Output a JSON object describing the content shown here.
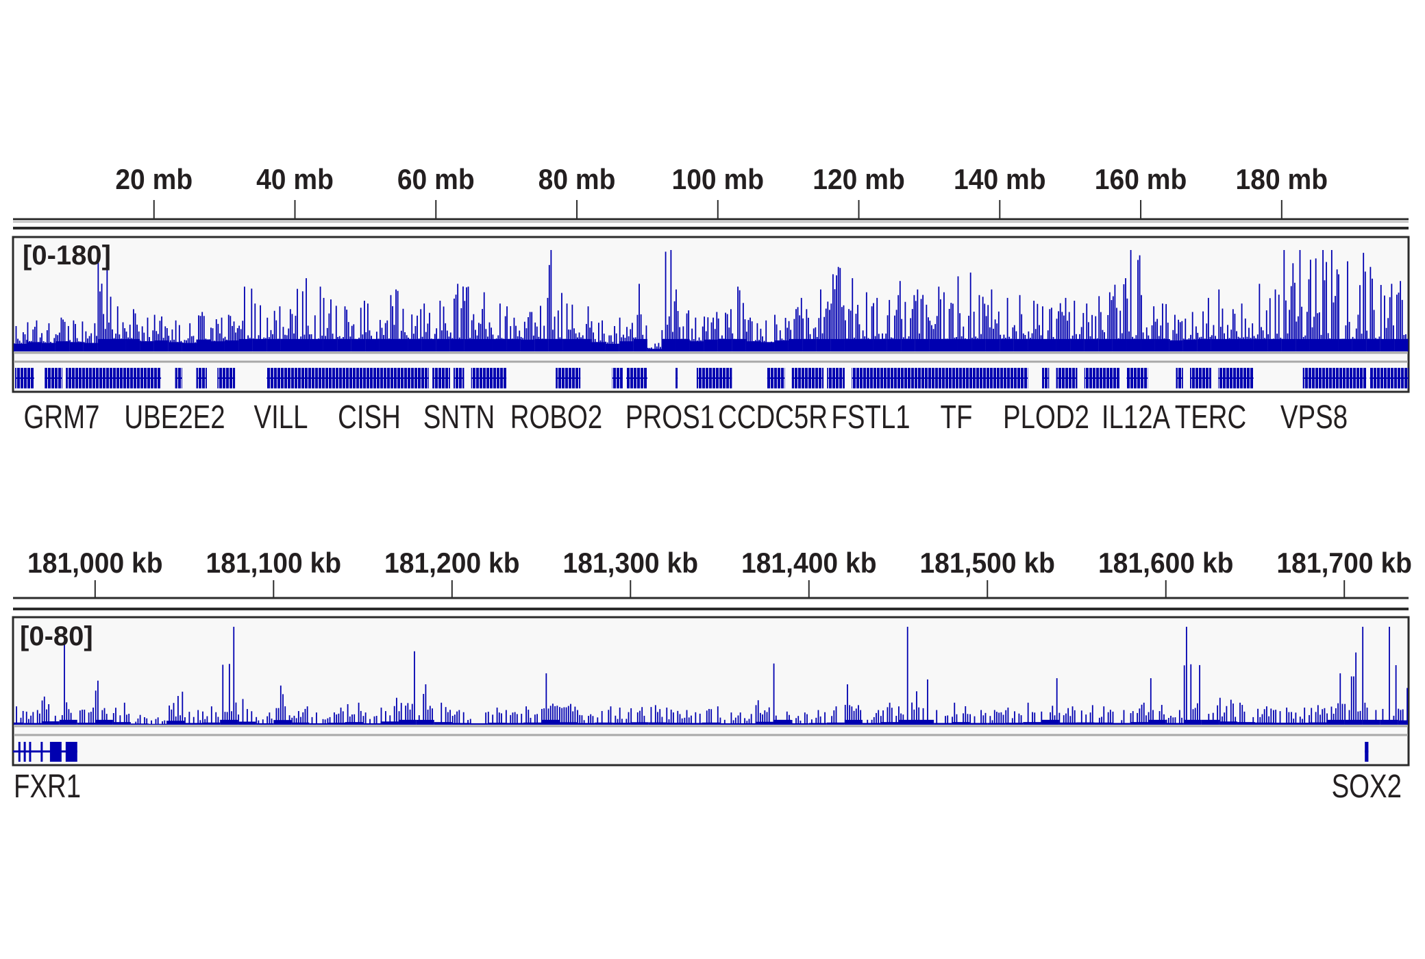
{
  "colors": {
    "signal": "#0000b0",
    "frame": "#2b2b2b",
    "track_bg": "#f8f8f8",
    "separator": "#a8a8a8"
  },
  "chart_data": [
    {
      "type": "bar",
      "view": "chromosome overview",
      "ruler": {
        "ticks": [
          20,
          40,
          60,
          80,
          100,
          120,
          140,
          160,
          180
        ],
        "tick_labels": [
          "20 mb",
          "40 mb",
          "60 mb",
          "80 mb",
          "100 mb",
          "120 mb",
          "140 mb",
          "160 mb",
          "180 mb"
        ],
        "unit": "mb"
      },
      "xlim": [
        0,
        198
      ],
      "data_range_label": "[0-180]",
      "ylim": [
        0,
        180
      ],
      "bin_size_mb": 2,
      "bin_starts_mb": [
        0,
        2,
        4,
        6,
        8,
        10,
        12,
        14,
        16,
        18,
        20,
        22,
        24,
        26,
        28,
        30,
        32,
        34,
        36,
        38,
        40,
        42,
        44,
        46,
        48,
        50,
        52,
        54,
        56,
        58,
        60,
        62,
        64,
        66,
        68,
        70,
        72,
        74,
        76,
        78,
        80,
        82,
        84,
        86,
        88,
        90,
        92,
        94,
        96,
        98,
        100,
        102,
        104,
        106,
        108,
        110,
        112,
        114,
        116,
        118,
        120,
        122,
        124,
        126,
        128,
        130,
        132,
        134,
        136,
        138,
        140,
        142,
        144,
        146,
        148,
        150,
        152,
        154,
        156,
        158,
        160,
        162,
        164,
        166,
        168,
        170,
        172,
        174,
        176,
        178,
        180,
        182,
        184,
        186,
        188,
        190,
        192,
        194,
        196
      ],
      "values": [
        45,
        55,
        50,
        60,
        55,
        50,
        165,
        80,
        75,
        60,
        65,
        55,
        50,
        70,
        60,
        65,
        115,
        85,
        80,
        75,
        130,
        115,
        95,
        80,
        90,
        85,
        100,
        110,
        75,
        85,
        90,
        120,
        115,
        105,
        85,
        80,
        70,
        95,
        180,
        85,
        80,
        55,
        45,
        60,
        120,
        15,
        180,
        110,
        60,
        70,
        75,
        115,
        60,
        55,
        65,
        95,
        75,
        110,
        150,
        130,
        105,
        95,
        125,
        100,
        110,
        115,
        105,
        140,
        100,
        110,
        95,
        100,
        90,
        80,
        95,
        90,
        85,
        105,
        130,
        180,
        100,
        85,
        65,
        70,
        95,
        110,
        75,
        85,
        120,
        110,
        180,
        180,
        180,
        180,
        160,
        175,
        150,
        120,
        125
      ],
      "genes_dense_segments_mb": [
        [
          0.3,
          3
        ],
        [
          4.5,
          7
        ],
        [
          7.5,
          21
        ],
        [
          23,
          24
        ],
        [
          26,
          27.5
        ],
        [
          29,
          31.5
        ],
        [
          36,
          59
        ],
        [
          59.5,
          62
        ],
        [
          62.5,
          64
        ],
        [
          65,
          70
        ],
        [
          77,
          80.5
        ],
        [
          85,
          86.5
        ],
        [
          87,
          90
        ],
        [
          94,
          94.3
        ],
        [
          97,
          102
        ],
        [
          107,
          109.5
        ],
        [
          110.5,
          115
        ],
        [
          115.5,
          118
        ],
        [
          119,
          144
        ],
        [
          146,
          147
        ],
        [
          148,
          151
        ],
        [
          152,
          157
        ],
        [
          158,
          161
        ],
        [
          165,
          166
        ],
        [
          167,
          170
        ],
        [
          171,
          176
        ],
        [
          183,
          192
        ],
        [
          192.5,
          198
        ]
      ],
      "gene_labels": [
        "GRM7",
        "UBE2E2",
        "VILL",
        "CISH",
        "SNTN",
        "ROBO2",
        "PROS1",
        "CCDC5R",
        "FSTL1",
        "TF",
        "PLOD2",
        "IL12A",
        "TERC",
        "VPS8"
      ]
    },
    {
      "type": "bar",
      "view": "locus zoom",
      "ruler": {
        "ticks": [
          181000,
          181100,
          181200,
          181300,
          181400,
          181500,
          181600,
          181700
        ],
        "tick_labels": [
          "181,000 kb",
          "181,100 kb",
          "181,200 kb",
          "181,300 kb",
          "181,400 kb",
          "181,500 kb",
          "181,600 kb",
          "181,700 kb"
        ],
        "unit": "kb"
      },
      "xlim": [
        180954,
        181736
      ],
      "data_range_label": "[0-80]",
      "ylim": [
        0,
        80
      ],
      "bin_size_kb": 10,
      "bin_starts_kb": [
        180950,
        180960,
        180970,
        180980,
        180990,
        181000,
        181010,
        181020,
        181030,
        181040,
        181050,
        181060,
        181070,
        181080,
        181090,
        181100,
        181110,
        181120,
        181130,
        181140,
        181150,
        181160,
        181170,
        181180,
        181190,
        181200,
        181210,
        181220,
        181230,
        181240,
        181250,
        181260,
        181270,
        181280,
        181290,
        181300,
        181310,
        181320,
        181330,
        181340,
        181350,
        181360,
        181370,
        181380,
        181390,
        181400,
        181410,
        181420,
        181430,
        181440,
        181450,
        181460,
        181470,
        181480,
        181490,
        181500,
        181510,
        181520,
        181530,
        181540,
        181550,
        181560,
        181570,
        181580,
        181590,
        181600,
        181610,
        181620,
        181630,
        181640,
        181650,
        181660,
        181670,
        181680,
        181690,
        181700,
        181710,
        181720,
        181730
      ],
      "values": [
        15,
        12,
        23,
        66,
        14,
        36,
        18,
        8,
        6,
        27,
        12,
        15,
        80,
        21,
        10,
        32,
        15,
        10,
        14,
        18,
        10,
        22,
        60,
        33,
        18,
        12,
        10,
        14,
        12,
        15,
        42,
        17,
        12,
        15,
        14,
        17,
        16,
        14,
        12,
        15,
        10,
        10,
        20,
        50,
        10,
        12,
        15,
        33,
        12,
        18,
        80,
        37,
        12,
        18,
        12,
        12,
        14,
        18,
        38,
        15,
        16,
        15,
        12,
        18,
        38,
        12,
        80,
        54,
        22,
        18,
        15,
        14,
        14,
        16,
        42,
        59,
        80,
        80,
        30
      ],
      "genes": [
        {
          "name": "FXR1",
          "span_kb": [
            180954,
            180990
          ],
          "exons_kb": [
            [
              180957,
              180958
            ],
            [
              180960,
              180961
            ],
            [
              180963,
              180964
            ],
            [
              180969.5,
              180970.5
            ],
            [
              180974.7,
              180981.2
            ],
            [
              180983.5,
              180990
            ]
          ]
        },
        {
          "name": "SOX2",
          "span_kb": [
            181711.5,
            181713.5
          ],
          "exons_kb": [
            [
              181711.5,
              181713.5
            ]
          ]
        }
      ]
    }
  ]
}
